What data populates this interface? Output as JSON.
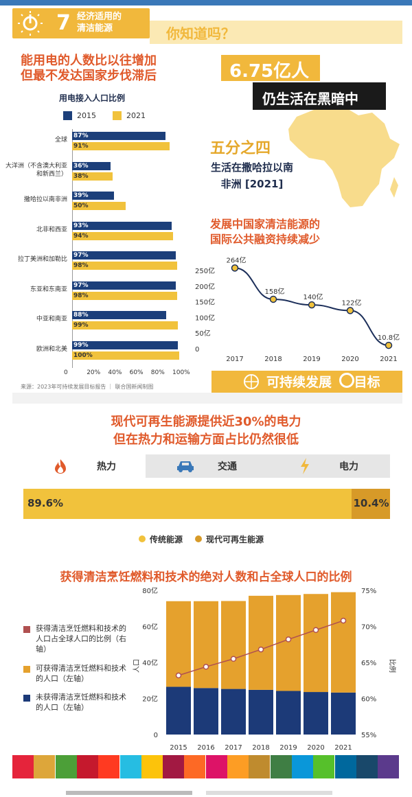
{
  "header": {
    "goal_number": "7",
    "goal_title_line1": "经济适用的",
    "goal_title_line2": "清洁能源",
    "did_you_know": "你知道吗？"
  },
  "access": {
    "title_line1": "能用电的人数比以往增加",
    "title_line2": "但最不发达国家步伐滞后",
    "subtitle": "用电接入人口比例",
    "legend_2015": "2015",
    "legend_2021": "2021",
    "source": "来源：2023年可持续发展目标报告 ｜ 联合国新闻制图"
  },
  "dark": {
    "number": "6.75亿人",
    "text": "仍生活在黑暗中",
    "fraction": "五分之四",
    "region_line1": "生活在撒哈拉以南",
    "region_line2": "非洲 [2021]"
  },
  "finance": {
    "title_line1": "发展中国家清洁能源的",
    "title_line2": "国际公共融资持续减少"
  },
  "sdg": {
    "text": "可持续发展",
    "text2": "目标"
  },
  "renewables": {
    "title_line1": "现代可再生能源提供近30%的电力",
    "title_line2": "但在热力和运输方面占比仍然很低",
    "tabs": [
      "热力",
      "交通",
      "电力"
    ],
    "traditional_label": "89.6%",
    "modern_label": "10.4%",
    "legend_traditional": "传统能源",
    "legend_modern": "现代可再生能源"
  },
  "cooking": {
    "title": "获得清洁烹饪燃料和技术的绝对人数和占全球人口的比例",
    "legend": [
      "获得清洁烹饪燃料和技术的人口占全球人口的比例（右轴）",
      "可获得清洁烹饪燃料和技术的人口（左轴）",
      "未获得清洁烹饪燃料和技术的人口（左轴）"
    ],
    "left_axis_label": "人口",
    "right_axis_label": "比例"
  },
  "colors": {
    "navy": "#1c3f7a",
    "gold": "#f1c23c",
    "cook_gold": "#e5a12d",
    "cook_navy": "#1c3a78",
    "orange_title": "#e05a2b",
    "line_red": "#b05050"
  },
  "chart_data": [
    {
      "type": "bar",
      "title": "用电接入人口比例",
      "categories": [
        "全球",
        "大洋洲（不含澳大利亚和新西兰）",
        "撒哈拉以南非洲",
        "北非和西亚",
        "拉丁美洲和加勒比",
        "东亚和东南亚",
        "中亚和南亚",
        "欧洲和北美"
      ],
      "series": [
        {
          "name": "2015",
          "values": [
            87,
            36,
            39,
            93,
            97,
            97,
            88,
            99
          ],
          "labels": [
            "87%",
            "36%",
            "39%",
            "93%",
            "97%",
            "97%",
            "88%",
            "99%"
          ]
        },
        {
          "name": "2021",
          "values": [
            91,
            38,
            50,
            94,
            98,
            98,
            99,
            100
          ],
          "labels": [
            "91%",
            "38%",
            "50%",
            "94%",
            "98%",
            "98%",
            "99%",
            "100%"
          ]
        }
      ],
      "xlim": [
        0,
        100
      ],
      "xticks": [
        "0",
        "20%",
        "40%",
        "60%",
        "80%",
        "100%"
      ]
    },
    {
      "type": "line",
      "x": [
        "2017",
        "2018",
        "2019",
        "2020",
        "2021"
      ],
      "values": [
        264,
        158,
        140,
        122,
        10.8
      ],
      "labels": [
        "264亿",
        "158亿",
        "140亿",
        "122亿",
        "10.8亿"
      ],
      "ylim": [
        0,
        250
      ],
      "yticks": [
        "0",
        "50亿",
        "100亿",
        "150亿",
        "200亿",
        "250亿"
      ]
    },
    {
      "type": "bar",
      "categories": [
        "热力"
      ],
      "series": [
        {
          "name": "传统能源",
          "values": [
            89.6
          ]
        },
        {
          "name": "现代可再生能源",
          "values": [
            10.4
          ]
        }
      ]
    },
    {
      "type": "bar",
      "categories": [
        "2015",
        "2016",
        "2017",
        "2018",
        "2019",
        "2020",
        "2021"
      ],
      "series": [
        {
          "name": "未获得清洁烹饪燃料和技术的人口（左轴）",
          "values": [
            26.5,
            25.8,
            25.3,
            24.8,
            24.2,
            23.6,
            23.3
          ]
        },
        {
          "name": "可获得清洁烹饪燃料和技术的人口（左轴）",
          "values": [
            47.5,
            48.2,
            48.8,
            52.2,
            53.2,
            54.4,
            55.7
          ]
        },
        {
          "name": "获得清洁烹饪燃料和技术的人口占全球人口的比例（右轴）",
          "values": [
            63.2,
            64.4,
            65.5,
            66.8,
            68.2,
            69.5,
            70.8
          ]
        }
      ],
      "ylim_left": [
        0,
        80
      ],
      "ylim_right": [
        55,
        75
      ],
      "yticks_left": [
        "0",
        "20亿",
        "40亿",
        "60亿",
        "80亿"
      ],
      "yticks_right": [
        "55%",
        "60%",
        "65%",
        "70%",
        "75%"
      ]
    }
  ]
}
